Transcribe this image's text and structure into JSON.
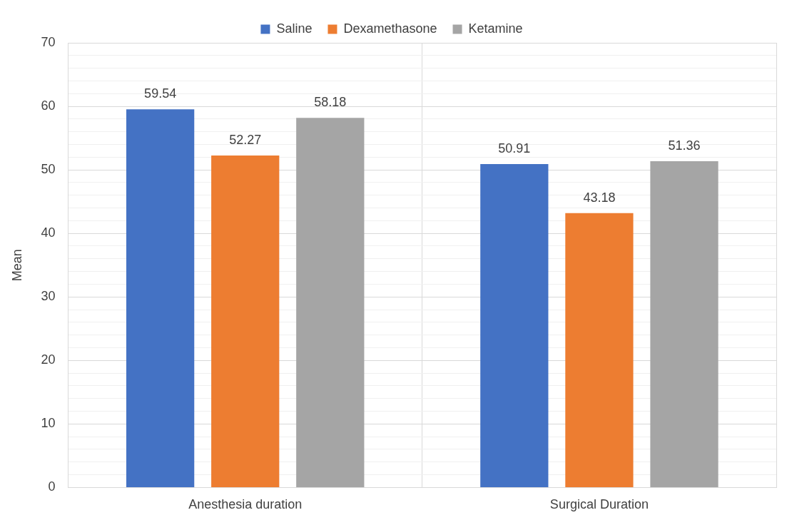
{
  "chart_data": {
    "type": "bar",
    "categories": [
      "Anesthesia duration",
      "Surgical Duration"
    ],
    "series": [
      {
        "name": "Saline",
        "color": "#4472c4",
        "values": [
          59.54,
          50.91
        ]
      },
      {
        "name": "Dexamethasone",
        "color": "#ed7d31",
        "values": [
          52.27,
          43.18
        ]
      },
      {
        "name": "Ketamine",
        "color": "#a5a5a5",
        "values": [
          58.18,
          51.36
        ]
      }
    ],
    "ylabel": "Mean",
    "ylim": [
      0,
      70
    ],
    "yticks": [
      0,
      {
        "value": 2,
        "label": null
      },
      {
        "value": 4,
        "label": null
      },
      {
        "value": 6,
        "label": null
      },
      {
        "value": 8,
        "label": null
      },
      10,
      {
        "value": 12,
        "label": null
      },
      {
        "value": 14,
        "label": null
      },
      {
        "value": 16,
        "label": null
      },
      {
        "value": 18,
        "label": null
      },
      20,
      {
        "value": 22,
        "label": null
      },
      {
        "value": 24,
        "label": null
      },
      {
        "value": 26,
        "label": null
      },
      {
        "value": 28,
        "label": null
      },
      30,
      {
        "value": 32,
        "label": null
      },
      {
        "value": 34,
        "label": null
      },
      {
        "value": 36,
        "label": null
      },
      {
        "value": 38,
        "label": null
      },
      40,
      {
        "value": 42,
        "label": null
      },
      {
        "value": 44,
        "label": null
      },
      {
        "value": 46,
        "label": null
      },
      {
        "value": 48,
        "label": null
      },
      50,
      {
        "value": 52,
        "label": null
      },
      {
        "value": 54,
        "label": null
      },
      {
        "value": 56,
        "label": null
      },
      {
        "value": 58,
        "label": null
      },
      60,
      {
        "value": 62,
        "label": null
      },
      {
        "value": 64,
        "label": null
      },
      {
        "value": 66,
        "label": null
      },
      {
        "value": 68,
        "label": null
      },
      70
    ],
    "grid": true,
    "legend": "top",
    "data_labels": true
  }
}
